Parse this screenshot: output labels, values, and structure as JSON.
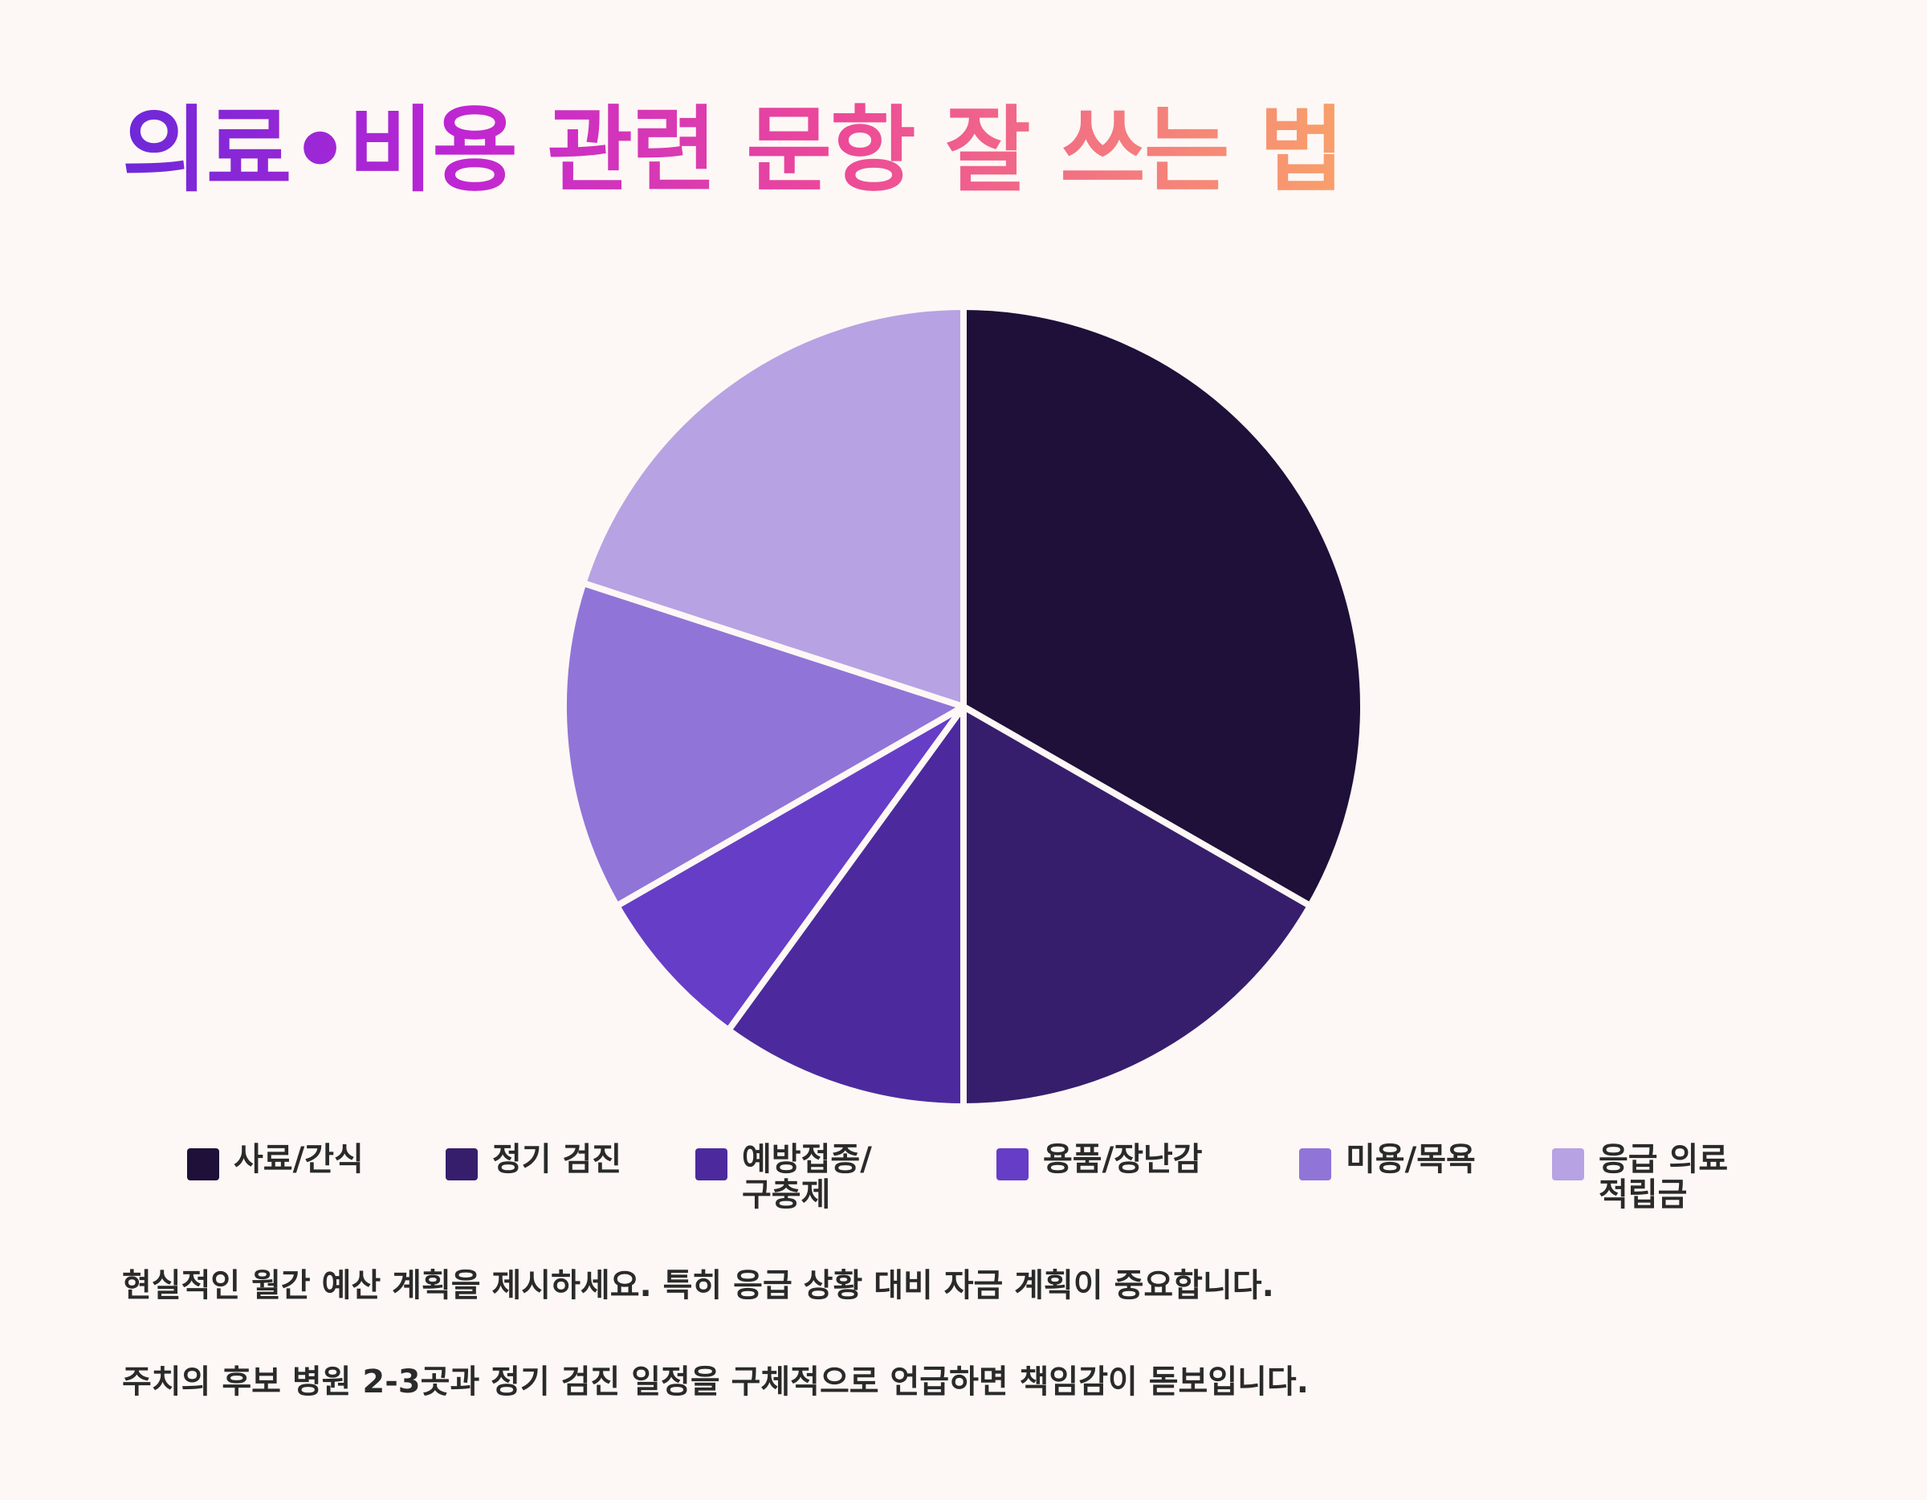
{
  "title": "의료•비용 관련 문항 잘 쓰는 법",
  "colors": {
    "background": "#FDF8F5",
    "title_gradient": [
      "#6D28D9",
      "#C026D3",
      "#EC4899",
      "#F9A06A"
    ],
    "text": "#2A2A2A",
    "slice_border": "#FDF8F5"
  },
  "chart_data": {
    "type": "pie",
    "title": "",
    "start_angle": "12 o'clock",
    "direction": "clockwise",
    "legend_placement": "bottom",
    "slices": [
      {
        "label": "사료/간식",
        "value": 33.3,
        "color": "#1E1039"
      },
      {
        "label": "정기 검진",
        "value": 16.7,
        "color": "#371E6D"
      },
      {
        "label": "예방접종/구충제",
        "value": 10,
        "color": "#4C2A9E"
      },
      {
        "label": "용품/장난감",
        "value": 6.7,
        "color": "#663DC7"
      },
      {
        "label": "미용/목욕",
        "value": 13.3,
        "color": "#9174D8"
      },
      {
        "label": "응급 의료 적립금",
        "value": 20,
        "color": "#B7A2E3"
      }
    ]
  },
  "notes": [
    "현실적인 월간 예산 계획을 제시하세요. 특히 응급 상황 대비 자금 계획이 중요합니다.",
    "주치의 후보 병원 2-3곳과 정기 검진 일정을 구체적으로 언급하면 책임감이 돋보입니다."
  ]
}
